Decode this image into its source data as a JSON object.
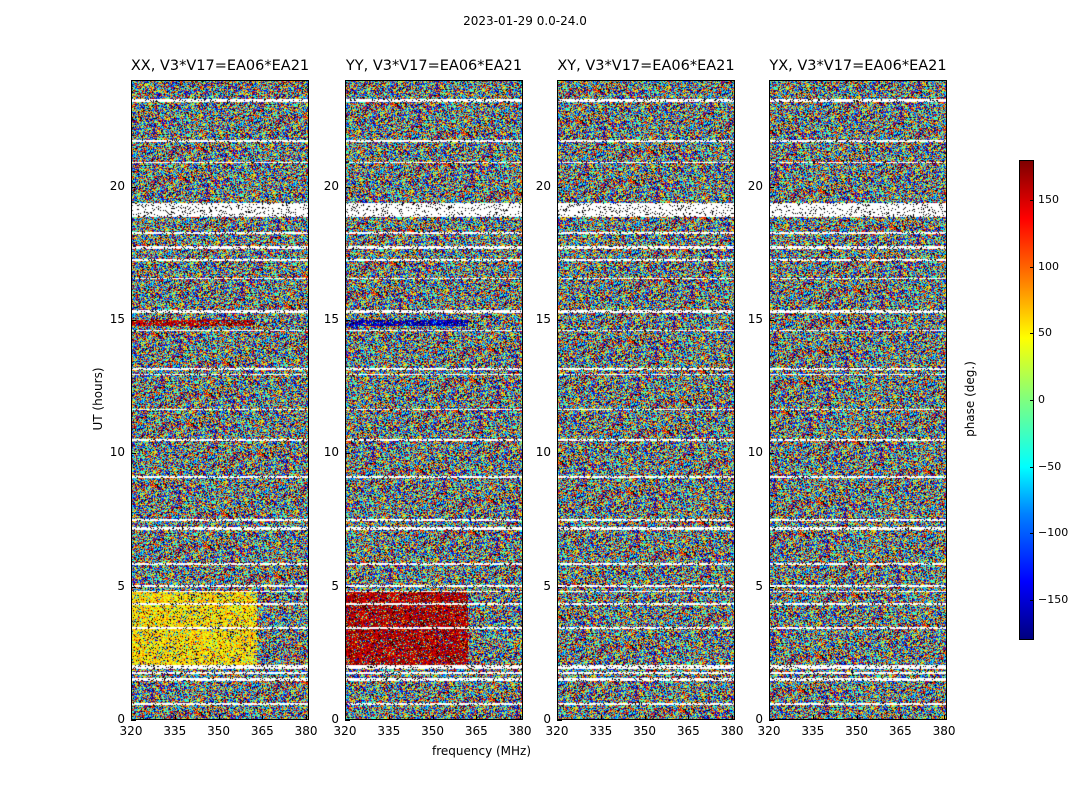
{
  "figure": {
    "suptitle": "2023-01-29 0.0-24.0",
    "xlabel": "frequency (MHz)",
    "ylabel": "UT (hours)"
  },
  "chart_data": {
    "type": "heatmap",
    "title": "2023-01-29 0.0-24.0",
    "xlabel": "frequency (MHz)",
    "ylabel": "UT (hours)",
    "xlim": [
      320,
      381
    ],
    "ylim": [
      0,
      24
    ],
    "x_ticks": [
      "320",
      "335",
      "350",
      "365",
      "380"
    ],
    "y_ticks": [
      "0",
      "5",
      "10",
      "15",
      "20"
    ],
    "colormap": "jet",
    "colorbar": {
      "label": "phase (deg.)",
      "range": [
        -180,
        180
      ],
      "ticks": [
        "150",
        "100",
        "50",
        "0",
        "−50",
        "−100",
        "−150"
      ]
    },
    "panels": [
      {
        "title": "XX, V3*V17=EA06*EA21",
        "coherent_regions": [
          {
            "t_range": [
              2.1,
              4.8
            ],
            "f_range": [
              320,
              363
            ],
            "phase_deg": 55
          },
          {
            "t_range": [
              14.8,
              15.0
            ],
            "f_range": [
              320,
              362
            ],
            "phase_deg": 160
          }
        ]
      },
      {
        "title": "YY, V3*V17=EA06*EA21",
        "coherent_regions": [
          {
            "t_range": [
              2.1,
              4.8
            ],
            "f_range": [
              320,
              362
            ],
            "phase_deg": 165
          },
          {
            "t_range": [
              14.8,
              15.0
            ],
            "f_range": [
              320,
              362
            ],
            "phase_deg": -160
          }
        ]
      },
      {
        "title": "XY, V3*V17=EA06*EA21",
        "coherent_regions": []
      },
      {
        "title": "YX, V3*V17=EA06*EA21",
        "coherent_regions": []
      }
    ],
    "flagged_time_ranges": [
      [
        0.6,
        0.65
      ],
      [
        1.5,
        1.58
      ],
      [
        1.75,
        1.8
      ],
      [
        1.95,
        2.1
      ],
      [
        3.45,
        3.5
      ],
      [
        4.35,
        4.4
      ],
      [
        4.8,
        4.85
      ],
      [
        5.0,
        5.1
      ],
      [
        5.85,
        5.9
      ],
      [
        7.15,
        7.25
      ],
      [
        7.5,
        7.55
      ],
      [
        9.1,
        9.15
      ],
      [
        10.5,
        10.55
      ],
      [
        11.65,
        11.7
      ],
      [
        12.95,
        13.0
      ],
      [
        13.15,
        13.2
      ],
      [
        14.6,
        14.65
      ],
      [
        15.3,
        15.4
      ],
      [
        16.55,
        16.6
      ],
      [
        17.25,
        17.3
      ],
      [
        17.7,
        17.8
      ],
      [
        18.25,
        18.3
      ],
      [
        18.9,
        19.4
      ],
      [
        20.9,
        20.95
      ],
      [
        21.7,
        21.75
      ],
      [
        23.2,
        23.3
      ]
    ]
  }
}
